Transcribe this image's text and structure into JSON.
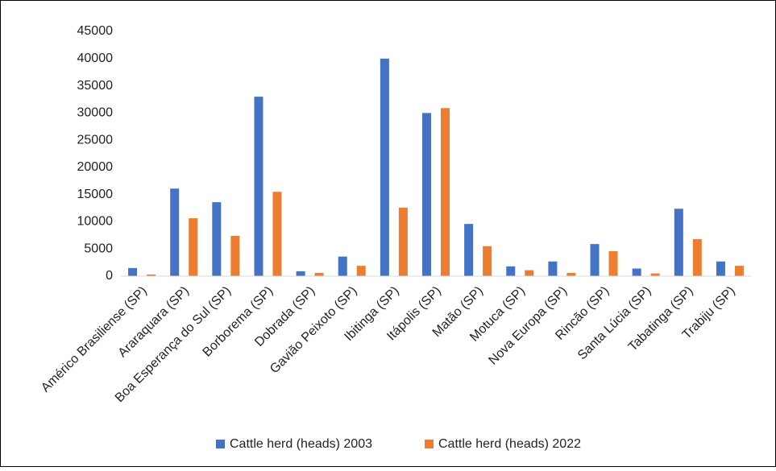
{
  "chart_data": {
    "type": "bar",
    "categories": [
      "Américo Brasiliense (SP)",
      "Araraquara (SP)",
      "Boa Esperança do Sul (SP)",
      "Borborema (SP)",
      "Dobrada (SP)",
      "Gavião Peixoto (SP)",
      "Ibitinga (SP)",
      "Itápolis (SP)",
      "Matão (SP)",
      "Motuca (SP)",
      "Nova Europa (SP)",
      "Rincão (SP)",
      "Santa Lúcia (SP)",
      "Tabatinga (SP)",
      "Trabiju (SP)"
    ],
    "series": [
      {
        "name": "Cattle herd (heads) 2003",
        "color": "#4472c4",
        "values": [
          1500,
          16100,
          13600,
          33000,
          900,
          3600,
          40000,
          30000,
          9600,
          1800,
          2700,
          5900,
          1400,
          12400,
          2700
        ]
      },
      {
        "name": "Cattle herd (heads) 2022",
        "color": "#ed7d31",
        "values": [
          300,
          10650,
          7400,
          15500,
          600,
          1900,
          12600,
          30900,
          5500,
          1100,
          600,
          4600,
          500,
          6800,
          1900
        ]
      }
    ],
    "ylim": [
      0,
      45000
    ],
    "yticks": [
      0,
      5000,
      10000,
      15000,
      20000,
      25000,
      30000,
      35000,
      40000,
      45000
    ],
    "grid": false
  }
}
